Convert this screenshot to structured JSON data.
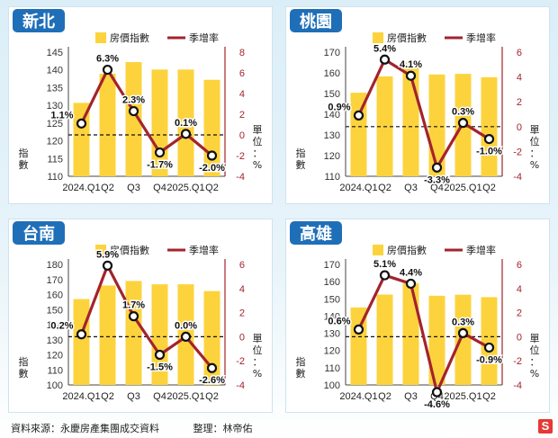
{
  "footer": {
    "source": "資料來源：永慶房產集團成交資料",
    "editor": "整理：林帝佑"
  },
  "logo_letter": "S",
  "colors": {
    "bar": "#fcd33d",
    "line": "#a3232d",
    "title_bg": "#1f6fb8",
    "panel_border": "#cfe3ee"
  },
  "chart_data": [
    {
      "type": "bar",
      "title": "新北",
      "categories": [
        "2024.Q1",
        "Q2",
        "Q3",
        "Q4",
        "2025.Q1",
        "Q2"
      ],
      "series": [
        {
          "name": "房價指數",
          "type": "bar",
          "axis": "left",
          "values": [
            130.7,
            138.9,
            142.2,
            140.1,
            140.1,
            137.2
          ]
        },
        {
          "name": "季增率",
          "type": "line",
          "axis": "right",
          "values": [
            1.1,
            6.3,
            2.3,
            -1.7,
            0.1,
            -2.0
          ],
          "labels": [
            "1.1%",
            "6.3%",
            "2.3%",
            "-1.7%",
            "0.1%",
            "-2.0%"
          ]
        }
      ],
      "ylim_left": [
        110,
        145
      ],
      "yticks_left": [
        110,
        115,
        120,
        125,
        130,
        135,
        140,
        145
      ],
      "ylim_right": [
        -4,
        8
      ],
      "yticks_right": [
        -4,
        -2,
        0,
        2,
        4,
        6,
        8
      ],
      "ylabel_left": "指數",
      "ylabel_right": "單位：%",
      "legend_position": "top-center",
      "zero_line": "dashed"
    },
    {
      "type": "bar",
      "title": "桃園",
      "categories": [
        "2024.Q1",
        "Q2",
        "Q3",
        "Q4",
        "2025.Q1",
        "Q2"
      ],
      "series": [
        {
          "name": "房價指數",
          "type": "bar",
          "axis": "left",
          "values": [
            150.4,
            158.3,
            165.0,
            159.2,
            159.5,
            157.9
          ]
        },
        {
          "name": "季增率",
          "type": "line",
          "axis": "right",
          "values": [
            0.9,
            5.4,
            4.1,
            -3.3,
            0.3,
            -1.0
          ],
          "labels": [
            "0.9%",
            "5.4%",
            "4.1%",
            "-3.3%",
            "0.3%",
            "-1.0%"
          ]
        }
      ],
      "ylim_left": [
        110,
        170
      ],
      "yticks_left": [
        110,
        120,
        130,
        140,
        150,
        160,
        170
      ],
      "ylim_right": [
        -4,
        6
      ],
      "yticks_right": [
        -4,
        -2,
        0,
        2,
        4,
        6
      ],
      "ylabel_left": "指數",
      "ylabel_right": "單位：%",
      "legend_position": "top-center",
      "zero_line": "dashed"
    },
    {
      "type": "bar",
      "title": "台南",
      "categories": [
        "2024.Q1",
        "Q2",
        "Q3",
        "Q4",
        "2025.Q1",
        "Q2"
      ],
      "series": [
        {
          "name": "房價指數",
          "type": "bar",
          "axis": "left",
          "values": [
            157.0,
            166.0,
            169.0,
            166.8,
            166.8,
            162.3
          ]
        },
        {
          "name": "季增率",
          "type": "line",
          "axis": "right",
          "values": [
            0.2,
            5.9,
            1.7,
            -1.5,
            0.0,
            -2.6
          ],
          "labels": [
            "0.2%",
            "5.9%",
            "1.7%",
            "-1.5%",
            "0.0%",
            "-2.6%"
          ]
        }
      ],
      "ylim_left": [
        100,
        180
      ],
      "yticks_left": [
        100,
        110,
        120,
        130,
        140,
        150,
        160,
        170,
        180
      ],
      "ylim_right": [
        -4,
        6
      ],
      "yticks_right": [
        -4,
        -2,
        0,
        2,
        4,
        6
      ],
      "ylabel_left": "指數",
      "ylabel_right": "單位：%",
      "legend_position": "top-center",
      "zero_line": "dashed"
    },
    {
      "type": "bar",
      "title": "高雄",
      "categories": [
        "2024.Q1",
        "Q2",
        "Q3",
        "Q4",
        "2025.Q1",
        "Q2"
      ],
      "series": [
        {
          "name": "房價指數",
          "type": "bar",
          "axis": "left",
          "values": [
            145.0,
            152.5,
            159.0,
            151.8,
            152.4,
            151.0
          ]
        },
        {
          "name": "季增率",
          "type": "line",
          "axis": "right",
          "values": [
            0.6,
            5.1,
            4.4,
            -4.6,
            0.3,
            -0.9
          ],
          "labels": [
            "0.6%",
            "5.1%",
            "4.4%",
            "-4.6%",
            "0.3%",
            "-0.9%"
          ]
        }
      ],
      "ylim_left": [
        100,
        170
      ],
      "yticks_left": [
        100,
        110,
        120,
        130,
        140,
        150,
        160,
        170
      ],
      "ylim_right": [
        -4,
        6
      ],
      "yticks_right": [
        -4,
        -2,
        0,
        2,
        4,
        6
      ],
      "ylabel_left": "指數",
      "ylabel_right": "單位：%",
      "legend_position": "top-center",
      "zero_line": "dashed"
    }
  ]
}
